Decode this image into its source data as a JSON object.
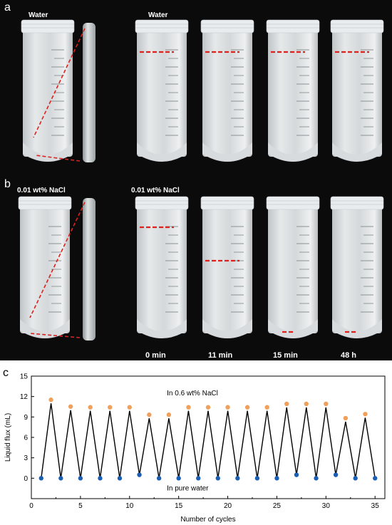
{
  "panel_a": {
    "letter": "a",
    "left_label": "Water",
    "right_label": "Water"
  },
  "panel_b": {
    "letter": "b",
    "left_label": "0.01 wt% NaCl",
    "right_label": "0.01 wt% NaCl"
  },
  "time_labels": [
    "0 min",
    "11 min",
    "15 min",
    "48 h"
  ],
  "tube_scale_ticks": [
    "45",
    "40",
    "35",
    "30",
    "25",
    "20",
    "15",
    "10"
  ],
  "colors": {
    "photo_background": "#0b0b0c",
    "red_marker": "#e0201c",
    "orange_points": "#f0a05a",
    "blue_points": "#1a5fb4",
    "line": "#000000"
  },
  "chart_data": {
    "type": "line",
    "panel_letter": "c",
    "xlabel": "Number of cycles",
    "ylabel": "Liquid flux (mL)",
    "xlim": [
      0,
      36
    ],
    "ylim": [
      -3,
      15
    ],
    "xticks": [
      0,
      5,
      10,
      15,
      20,
      25,
      30,
      35
    ],
    "yticks": [
      0,
      3,
      6,
      9,
      12,
      15
    ],
    "annotations": [
      "In 0.6 wt% NaCl",
      "In pure water"
    ],
    "x": [
      1,
      2,
      3,
      4,
      5,
      6,
      7,
      8,
      9,
      10,
      11,
      12,
      13,
      14,
      15,
      16,
      17,
      18,
      19,
      20,
      21,
      22,
      23,
      24,
      25,
      26,
      27,
      28,
      29,
      30,
      31,
      32,
      33,
      34,
      35
    ],
    "y": [
      0,
      11.0,
      0,
      10.0,
      0,
      9.9,
      0,
      9.9,
      0,
      9.9,
      0.5,
      8.8,
      0,
      8.8,
      0,
      9.9,
      0,
      9.9,
      0,
      9.9,
      0,
      9.9,
      0,
      9.9,
      0,
      10.4,
      0.5,
      10.4,
      0,
      10.4,
      0.5,
      8.3,
      0,
      8.9,
      0
    ],
    "series": [
      {
        "name": "In 0.6 wt% NaCl",
        "x": [
          2,
          4,
          6,
          8,
          10,
          12,
          14,
          16,
          18,
          20,
          22,
          24,
          26,
          28,
          30,
          32,
          34
        ],
        "values": [
          11.0,
          10.0,
          9.9,
          9.9,
          9.9,
          8.8,
          8.8,
          9.9,
          9.9,
          9.9,
          9.9,
          9.9,
          10.4,
          10.4,
          10.4,
          8.3,
          8.9
        ]
      },
      {
        "name": "In pure water",
        "x": [
          1,
          3,
          5,
          7,
          9,
          11,
          13,
          15,
          17,
          19,
          21,
          23,
          25,
          27,
          29,
          31,
          33,
          35
        ],
        "values": [
          0,
          0,
          0,
          0,
          0,
          0.5,
          0,
          0,
          0,
          0,
          0,
          0,
          0,
          0.5,
          0,
          0.5,
          0,
          0
        ]
      }
    ]
  }
}
